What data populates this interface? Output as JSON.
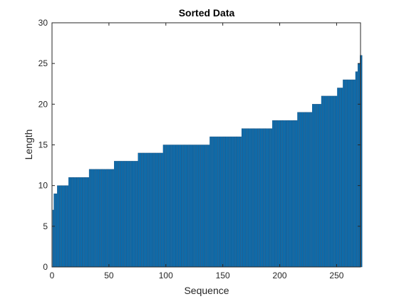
{
  "chart_data": {
    "type": "bar",
    "title": "Sorted Data",
    "xlabel": "Sequence",
    "ylabel": "Length",
    "xlim": [
      0,
      271
    ],
    "ylim": [
      0,
      30
    ],
    "xticks": [
      0,
      50,
      100,
      150,
      200,
      250
    ],
    "yticks": [
      0,
      5,
      10,
      15,
      20,
      25,
      30
    ],
    "grid": false,
    "box": true,
    "bar_color": "#0072BD",
    "bar_edge_color": "#1A4F7A",
    "series": [
      {
        "runs": [
          {
            "value": 7,
            "count": 1
          },
          {
            "value": 9,
            "count": 3
          },
          {
            "value": 10,
            "count": 10
          },
          {
            "value": 11,
            "count": 18
          },
          {
            "value": 12,
            "count": 22
          },
          {
            "value": 13,
            "count": 21
          },
          {
            "value": 14,
            "count": 22
          },
          {
            "value": 15,
            "count": 41
          },
          {
            "value": 16,
            "count": 28
          },
          {
            "value": 17,
            "count": 27
          },
          {
            "value": 18,
            "count": 22
          },
          {
            "value": 19,
            "count": 13
          },
          {
            "value": 20,
            "count": 8
          },
          {
            "value": 21,
            "count": 14
          },
          {
            "value": 22,
            "count": 5
          },
          {
            "value": 23,
            "count": 11
          },
          {
            "value": 24,
            "count": 2
          },
          {
            "value": 25,
            "count": 2
          },
          {
            "value": 26,
            "count": 2
          }
        ]
      }
    ]
  }
}
